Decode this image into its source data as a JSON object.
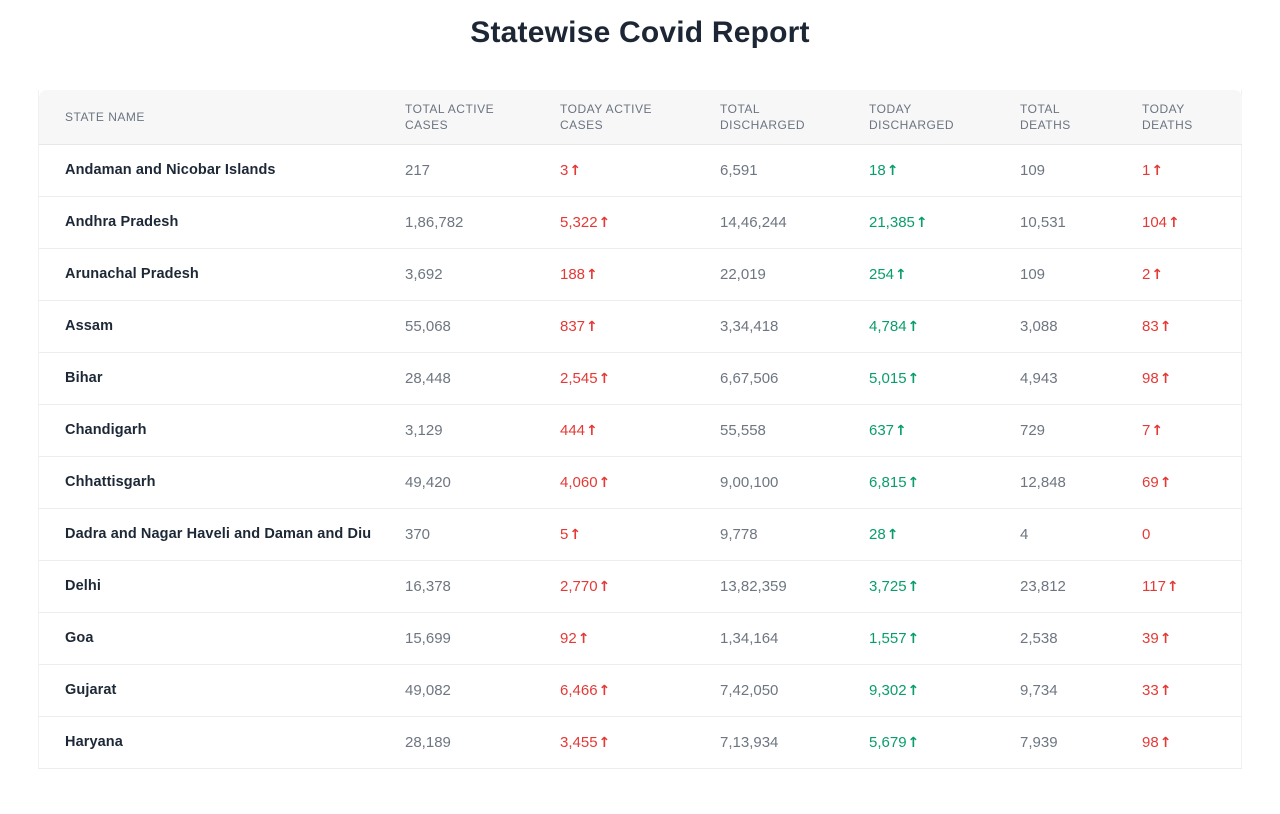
{
  "title": "Statewise Covid Report",
  "colors": {
    "negative": "#e23a36",
    "positive": "#0a9d6c",
    "title": "#1c2634",
    "state": "#1d2836",
    "muted": "#6e7681",
    "header_text": "#6b7480",
    "header_bg": "#f7f7f8",
    "border": "#ededee",
    "edge": "#f1f1f2"
  },
  "icons": {
    "up_arrow": "↑"
  },
  "chart_data": {
    "type": "table",
    "title": "Statewise Covid Report",
    "columns": [
      "STATE NAME",
      "TOTAL ACTIVE\nCASES",
      "TODAY ACTIVE\nCASES",
      "TOTAL\nDISCHARGED",
      "TODAY\nDISCHARGED",
      "TOTAL\nDEATHS",
      "TODAY\nDEATHS"
    ],
    "rows": [
      {
        "state": "Andaman and Nicobar Islands",
        "total_active": "217",
        "today_active": {
          "v": "3",
          "up": true
        },
        "total_discharged": "6,591",
        "today_discharged": {
          "v": "18",
          "up": true
        },
        "total_deaths": "109",
        "today_deaths": {
          "v": "1",
          "up": true
        }
      },
      {
        "state": "Andhra Pradesh",
        "total_active": "1,86,782",
        "today_active": {
          "v": "5,322",
          "up": true
        },
        "total_discharged": "14,46,244",
        "today_discharged": {
          "v": "21,385",
          "up": true
        },
        "total_deaths": "10,531",
        "today_deaths": {
          "v": "104",
          "up": true
        }
      },
      {
        "state": "Arunachal Pradesh",
        "total_active": "3,692",
        "today_active": {
          "v": "188",
          "up": true
        },
        "total_discharged": "22,019",
        "today_discharged": {
          "v": "254",
          "up": true
        },
        "total_deaths": "109",
        "today_deaths": {
          "v": "2",
          "up": true
        }
      },
      {
        "state": "Assam",
        "total_active": "55,068",
        "today_active": {
          "v": "837",
          "up": true
        },
        "total_discharged": "3,34,418",
        "today_discharged": {
          "v": "4,784",
          "up": true
        },
        "total_deaths": "3,088",
        "today_deaths": {
          "v": "83",
          "up": true
        }
      },
      {
        "state": "Bihar",
        "total_active": "28,448",
        "today_active": {
          "v": "2,545",
          "up": true
        },
        "total_discharged": "6,67,506",
        "today_discharged": {
          "v": "5,015",
          "up": true
        },
        "total_deaths": "4,943",
        "today_deaths": {
          "v": "98",
          "up": true
        }
      },
      {
        "state": "Chandigarh",
        "total_active": "3,129",
        "today_active": {
          "v": "444",
          "up": true
        },
        "total_discharged": "55,558",
        "today_discharged": {
          "v": "637",
          "up": true
        },
        "total_deaths": "729",
        "today_deaths": {
          "v": "7",
          "up": true
        }
      },
      {
        "state": "Chhattisgarh",
        "total_active": "49,420",
        "today_active": {
          "v": "4,060",
          "up": true
        },
        "total_discharged": "9,00,100",
        "today_discharged": {
          "v": "6,815",
          "up": true
        },
        "total_deaths": "12,848",
        "today_deaths": {
          "v": "69",
          "up": true
        }
      },
      {
        "state": "Dadra and Nagar Haveli and Daman and Diu",
        "total_active": "370",
        "today_active": {
          "v": "5",
          "up": true
        },
        "total_discharged": "9,778",
        "today_discharged": {
          "v": "28",
          "up": true
        },
        "total_deaths": "4",
        "today_deaths": {
          "v": "0",
          "up": false
        }
      },
      {
        "state": "Delhi",
        "total_active": "16,378",
        "today_active": {
          "v": "2,770",
          "up": true
        },
        "total_discharged": "13,82,359",
        "today_discharged": {
          "v": "3,725",
          "up": true
        },
        "total_deaths": "23,812",
        "today_deaths": {
          "v": "117",
          "up": true
        }
      },
      {
        "state": "Goa",
        "total_active": "15,699",
        "today_active": {
          "v": "92",
          "up": true
        },
        "total_discharged": "1,34,164",
        "today_discharged": {
          "v": "1,557",
          "up": true
        },
        "total_deaths": "2,538",
        "today_deaths": {
          "v": "39",
          "up": true
        }
      },
      {
        "state": "Gujarat",
        "total_active": "49,082",
        "today_active": {
          "v": "6,466",
          "up": true
        },
        "total_discharged": "7,42,050",
        "today_discharged": {
          "v": "9,302",
          "up": true
        },
        "total_deaths": "9,734",
        "today_deaths": {
          "v": "33",
          "up": true
        }
      },
      {
        "state": "Haryana",
        "total_active": "28,189",
        "today_active": {
          "v": "3,455",
          "up": true
        },
        "total_discharged": "7,13,934",
        "today_discharged": {
          "v": "5,679",
          "up": true
        },
        "total_deaths": "7,939",
        "today_deaths": {
          "v": "98",
          "up": true
        }
      }
    ]
  }
}
